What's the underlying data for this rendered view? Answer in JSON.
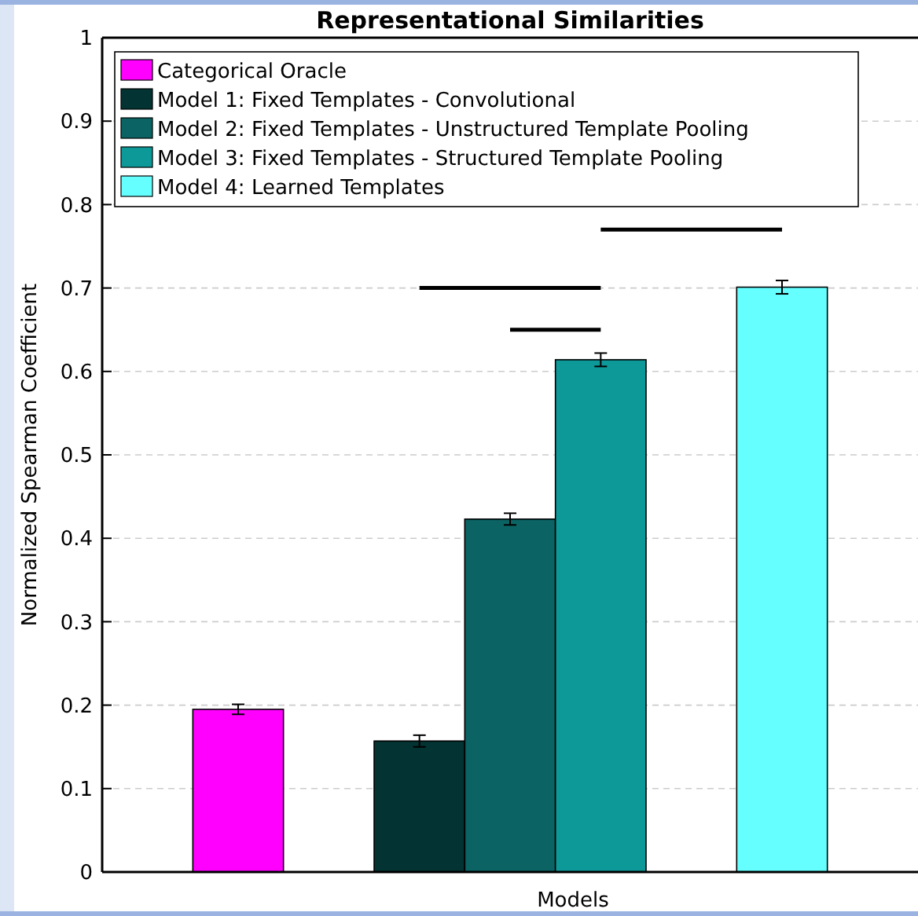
{
  "chart_data": {
    "type": "bar",
    "title": "Representational Similarities",
    "xlabel": "Models",
    "ylabel": "Normalized Spearman Coefficient",
    "categories": [
      null,
      null,
      null,
      null,
      null,
      null,
      null,
      null,
      null
    ],
    "series": [
      {
        "name": "Categorical Oracle",
        "color": "#ff00ff",
        "values": [
          null,
          0.195,
          null,
          null,
          null,
          null,
          null,
          null,
          null
        ],
        "errors": [
          null,
          0.006,
          null,
          null,
          null,
          null,
          null,
          null,
          null
        ]
      },
      {
        "name": "Model 1: Fixed Templates - Convolutional",
        "color": "#033333",
        "values": [
          null,
          null,
          null,
          0.157,
          null,
          null,
          null,
          null,
          null
        ],
        "errors": [
          null,
          null,
          null,
          0.007,
          null,
          null,
          null,
          null,
          null
        ]
      },
      {
        "name": "Model 2: Fixed Templates - Unstructured Template Pooling",
        "color": "#0b6363",
        "values": [
          null,
          null,
          null,
          null,
          0.423,
          null,
          null,
          null,
          null
        ],
        "errors": [
          null,
          null,
          null,
          null,
          0.007,
          null,
          null,
          null,
          null
        ]
      },
      {
        "name": "Model 3: Fixed Templates - Structured Template Pooling",
        "color": "#0e9999",
        "values": [
          null,
          null,
          null,
          null,
          null,
          0.614,
          null,
          null,
          null
        ],
        "errors": [
          null,
          null,
          null,
          null,
          null,
          0.008,
          null,
          null,
          null
        ]
      },
      {
        "name": "Model 4: Learned Templates",
        "color": "#66ffff",
        "values": [
          null,
          null,
          null,
          null,
          null,
          null,
          null,
          0.701,
          null
        ],
        "errors": [
          null,
          null,
          null,
          null,
          null,
          null,
          null,
          0.008,
          null
        ]
      }
    ],
    "ylim": [
      0,
      1
    ],
    "yticks": [
      0,
      0.1,
      0.2,
      0.3,
      0.4,
      0.5,
      0.6,
      0.7,
      0.8,
      0.9,
      1
    ],
    "grid": "y",
    "legend": "top left"
  }
}
